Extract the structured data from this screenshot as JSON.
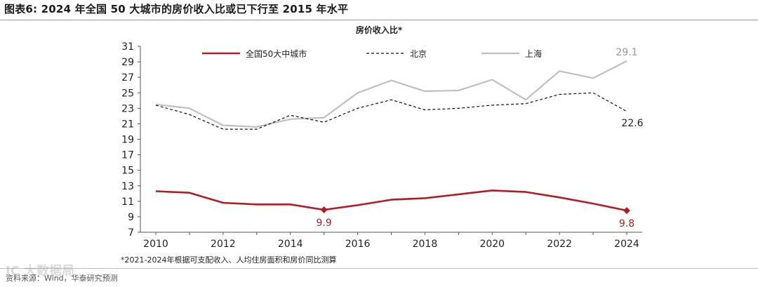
{
  "figure": {
    "title": "图表6:  2024 年全国 50 大城市的房价收入比或已下行至 2015 年水平",
    "note": "*2021-2024年根据可支配收入、人均住房面积和房价同比测算",
    "source": "资料来源：Wind，华泰研究预测",
    "watermark": "IC 大数据局"
  },
  "chart_data": {
    "type": "line",
    "title": "房价收入比*",
    "x": [
      2010,
      2011,
      2012,
      2013,
      2014,
      2015,
      2016,
      2017,
      2018,
      2019,
      2020,
      2021,
      2022,
      2023,
      2024
    ],
    "xticks": [
      2010,
      2012,
      2014,
      2016,
      2018,
      2020,
      2022,
      2024
    ],
    "ylim": [
      7,
      31
    ],
    "yticks": [
      7,
      9,
      11,
      13,
      15,
      17,
      19,
      21,
      23,
      25,
      27,
      29,
      31
    ],
    "legend_position": "top",
    "series": [
      {
        "name": "全国50大中城市",
        "color": "#b01e23",
        "style": "solid",
        "values": [
          12.3,
          12.1,
          10.8,
          10.6,
          10.6,
          9.9,
          10.5,
          11.2,
          11.4,
          11.9,
          12.4,
          12.2,
          11.5,
          10.7,
          9.8
        ],
        "labels": [
          {
            "x": 2015,
            "text": "9.9"
          },
          {
            "x": 2024,
            "text": "9.8"
          }
        ]
      },
      {
        "name": "北京",
        "color": "#111111",
        "style": "dashed",
        "values": [
          23.4,
          22.2,
          20.3,
          20.3,
          22.1,
          21.2,
          23.0,
          24.1,
          22.8,
          23.0,
          23.4,
          23.6,
          24.8,
          25.0,
          22.6
        ],
        "labels": [
          {
            "x": 2024,
            "text": "22.6"
          }
        ]
      },
      {
        "name": "上海",
        "color": "#bfbfbf",
        "style": "solid",
        "values": [
          23.5,
          23.0,
          20.8,
          20.6,
          21.6,
          21.8,
          25.0,
          26.6,
          25.2,
          25.3,
          26.7,
          24.1,
          27.8,
          26.9,
          29.1
        ],
        "labels": [
          {
            "x": 2024,
            "text": "29.1"
          }
        ]
      }
    ]
  }
}
